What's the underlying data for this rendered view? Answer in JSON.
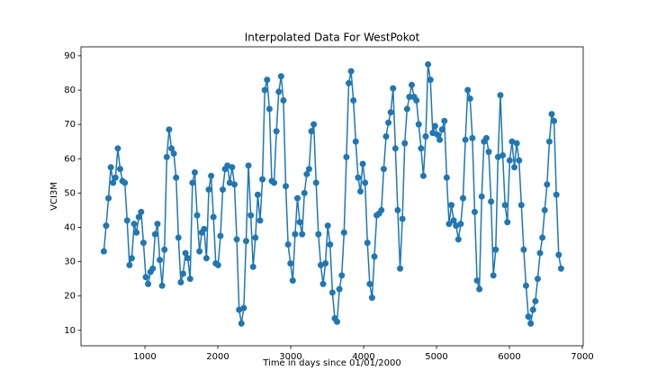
{
  "chart_data": {
    "type": "line",
    "title": "Interpolated Data For WestPokot",
    "x_label": "Time in days since 01/01/2000",
    "y_label": "VCI3M",
    "xlim": [
      123,
      7012
    ],
    "ylim": [
      5.5,
      92.6
    ],
    "xticks": [
      1000,
      2000,
      3000,
      4000,
      5000,
      6000,
      7000
    ],
    "yticks": [
      10,
      20,
      30,
      40,
      50,
      60,
      70,
      80,
      90
    ],
    "x": [
      436,
      468,
      500,
      532,
      564,
      596,
      628,
      660,
      692,
      724,
      756,
      788,
      820,
      852,
      884,
      916,
      948,
      980,
      1012,
      1044,
      1076,
      1108,
      1140,
      1172,
      1204,
      1236,
      1268,
      1300,
      1332,
      1364,
      1396,
      1428,
      1460,
      1492,
      1524,
      1556,
      1588,
      1620,
      1652,
      1684,
      1716,
      1748,
      1780,
      1812,
      1844,
      1876,
      1908,
      1940,
      1972,
      2004,
      2036,
      2068,
      2100,
      2132,
      2164,
      2196,
      2228,
      2260,
      2292,
      2324,
      2356,
      2388,
      2420,
      2452,
      2484,
      2516,
      2548,
      2580,
      2612,
      2644,
      2676,
      2708,
      2740,
      2772,
      2804,
      2836,
      2868,
      2900,
      2932,
      2964,
      2996,
      3028,
      3060,
      3092,
      3124,
      3156,
      3188,
      3220,
      3252,
      3284,
      3316,
      3348,
      3380,
      3412,
      3444,
      3476,
      3508,
      3540,
      3572,
      3604,
      3636,
      3668,
      3700,
      3732,
      3764,
      3796,
      3828,
      3860,
      3892,
      3924,
      3956,
      3988,
      4020,
      4052,
      4084,
      4116,
      4148,
      4180,
      4212,
      4244,
      4276,
      4308,
      4340,
      4372,
      4404,
      4436,
      4468,
      4500,
      4532,
      4564,
      4596,
      4628,
      4660,
      4692,
      4724,
      4756,
      4788,
      4820,
      4852,
      4884,
      4916,
      4948,
      4980,
      5012,
      5044,
      5076,
      5108,
      5140,
      5172,
      5204,
      5236,
      5268,
      5300,
      5332,
      5364,
      5396,
      5428,
      5460,
      5492,
      5524,
      5556,
      5588,
      5620,
      5652,
      5684,
      5716,
      5748,
      5780,
      5812,
      5844,
      5876,
      5908,
      5940,
      5972,
      6004,
      6036,
      6068,
      6100,
      6132,
      6164,
      6196,
      6228,
      6260,
      6292,
      6324,
      6356,
      6388,
      6420,
      6452,
      6484,
      6516,
      6548,
      6580,
      6612,
      6644,
      6676,
      6708
    ],
    "series": [
      {
        "color": "#1f77b4",
        "values": [
          33,
          40.5,
          48.5,
          57.5,
          53,
          54.5,
          63,
          57,
          53.5,
          53,
          42,
          29,
          31,
          41,
          38.5,
          43,
          44.5,
          35.5,
          25.5,
          23.5,
          27,
          28,
          38,
          41,
          30.5,
          23,
          33.5,
          60.5,
          68.5,
          63,
          61.5,
          54.5,
          37,
          24,
          26.5,
          32.5,
          31,
          25,
          53,
          56,
          43.5,
          33,
          38.5,
          39.5,
          31,
          51,
          55,
          43,
          29.5,
          29,
          37.5,
          51,
          57,
          58,
          53,
          57.5,
          52.5,
          36.5,
          16,
          12,
          16.5,
          36,
          58,
          43.5,
          28.5,
          37,
          49.5,
          42,
          54,
          80,
          83,
          74.5,
          53.5,
          53,
          68,
          79.5,
          84,
          77,
          52,
          35,
          29.5,
          24.5,
          38,
          48.5,
          41.5,
          38,
          50,
          55.5,
          57,
          68,
          70,
          53,
          38,
          29,
          23.5,
          29.5,
          40.5,
          35,
          21,
          13.5,
          12.5,
          22,
          26,
          38.5,
          60.5,
          82,
          85.5,
          77,
          65,
          54.5,
          50.5,
          58.5,
          53,
          35.5,
          23.5,
          19.5,
          31.5,
          43.5,
          44,
          45,
          57,
          66.5,
          70.5,
          73.5,
          80.5,
          63,
          45,
          28,
          42.5,
          64.5,
          74.5,
          78,
          81.5,
          78,
          77,
          70,
          63,
          55,
          66.5,
          87.5,
          83,
          67.5,
          69.5,
          67,
          65.5,
          68.5,
          71,
          54.5,
          41,
          46.5,
          42,
          40.5,
          36.5,
          41,
          48.5,
          65.5,
          80,
          77.5,
          66,
          44.5,
          24.5,
          22,
          49,
          65,
          66,
          62,
          47.5,
          26,
          33.5,
          60.5,
          78.5,
          61,
          46.5,
          41.5,
          59.5,
          65,
          57.5,
          64.5,
          59.5,
          46.5,
          33.5,
          23,
          14,
          12,
          16,
          18.5,
          25,
          32.5,
          37,
          45,
          52.5,
          65,
          73,
          71,
          49.5,
          32,
          28
        ]
      }
    ]
  }
}
